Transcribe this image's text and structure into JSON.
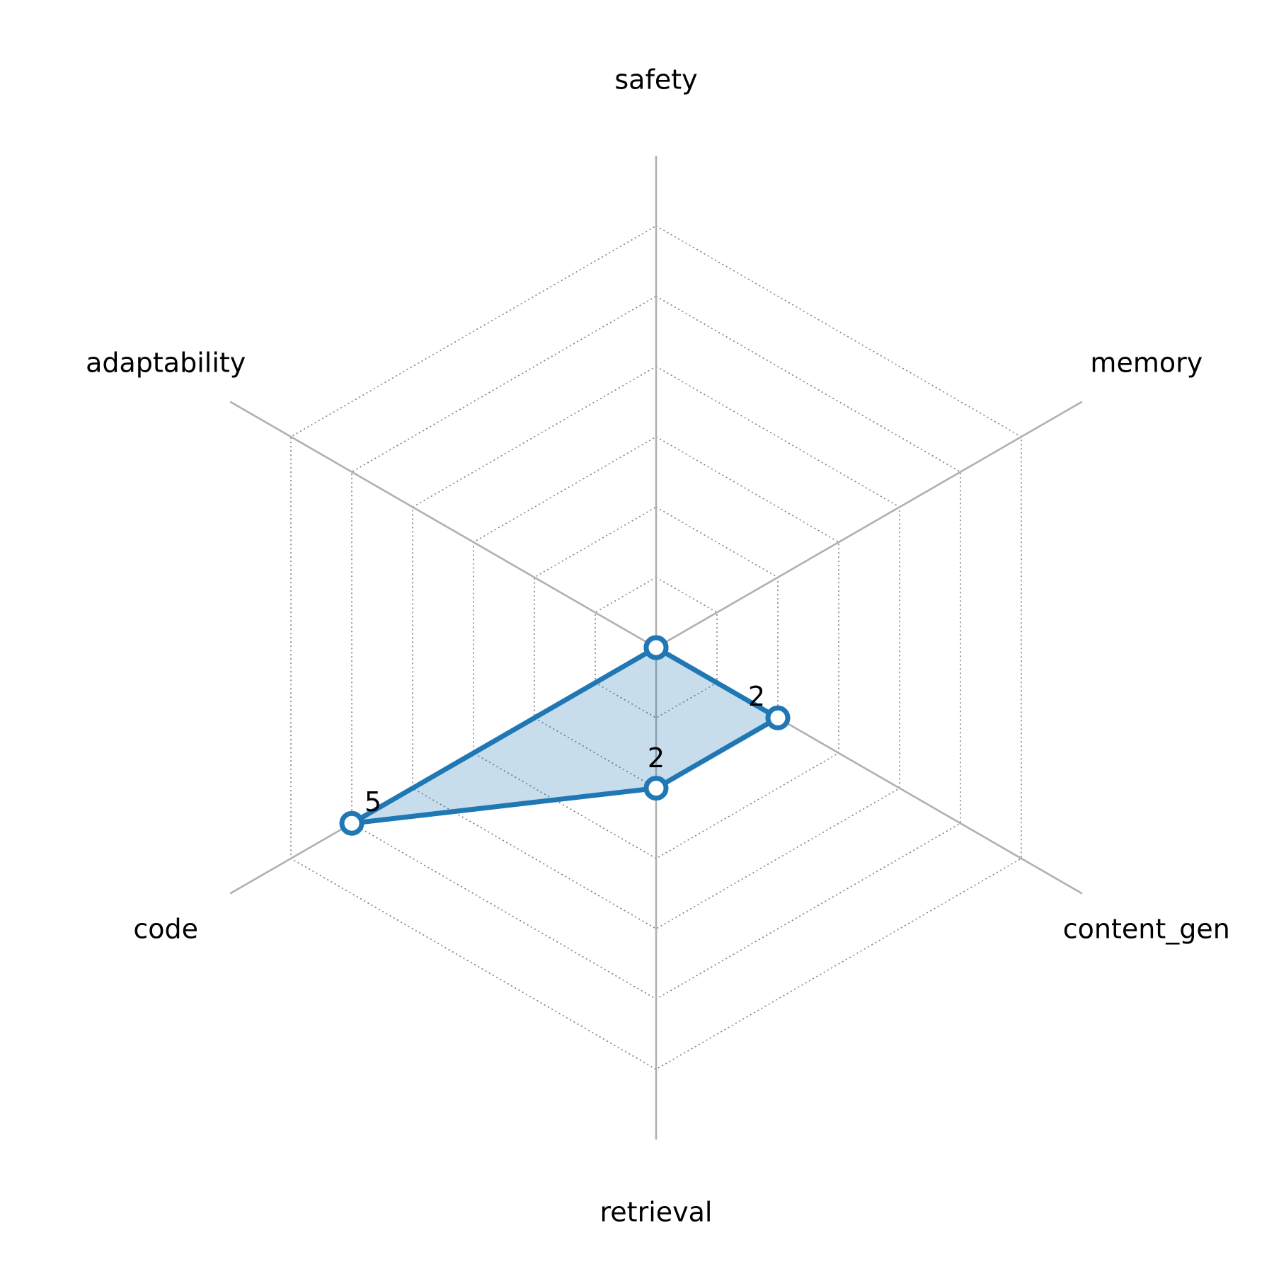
{
  "chart_data": {
    "type": "radar",
    "axes": [
      "safety",
      "memory",
      "content_gen",
      "retrieval",
      "code",
      "adaptability"
    ],
    "series": [
      {
        "values": [
          0,
          0,
          2,
          2,
          5,
          0
        ]
      }
    ],
    "data_labels": [
      "",
      "",
      "2",
      "2",
      "5",
      ""
    ],
    "rlim": [
      0,
      6
    ],
    "rings": 6,
    "grid": true,
    "legend": "none",
    "colors": {
      "line": "#1f77b4",
      "fill": "#1f77b4",
      "marker_face": "#ffffff",
      "spoke": "#b0b0b0",
      "grid": "#808080"
    }
  }
}
